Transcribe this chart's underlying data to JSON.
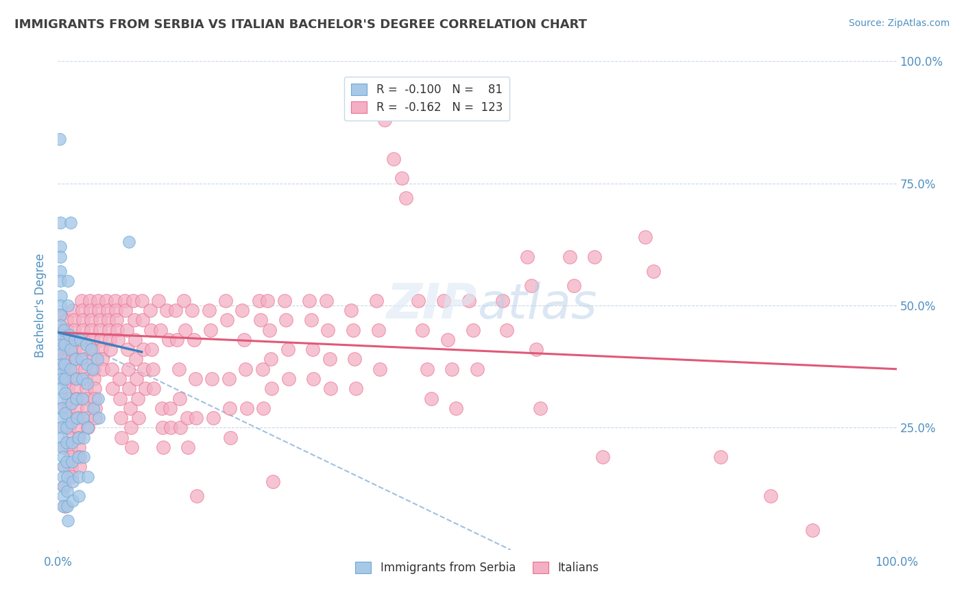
{
  "title": "IMMIGRANTS FROM SERBIA VS ITALIAN BACHELOR'S DEGREE CORRELATION CHART",
  "source_text": "Source: ZipAtlas.com",
  "ylabel": "Bachelor's Degree",
  "legend_label_1": "Immigrants from Serbia",
  "legend_label_2": "Italians",
  "xlim": [
    0.0,
    1.0
  ],
  "ylim": [
    0.0,
    1.0
  ],
  "x_left_label": "0.0%",
  "x_right_label": "100.0%",
  "ytick_positions": [
    0.25,
    0.5,
    0.75,
    1.0
  ],
  "yticklabels": [
    "25.0%",
    "50.0%",
    "75.0%",
    "100.0%"
  ],
  "blue_color": "#a8c8e8",
  "pink_color": "#f4afc4",
  "blue_edge_color": "#6aaad4",
  "pink_edge_color": "#e87090",
  "blue_line_color": "#3a80c0",
  "pink_line_color": "#e05878",
  "dashed_line_color": "#a0c0e0",
  "watermark_color": "#dce8f0",
  "background_color": "#ffffff",
  "grid_color": "#c8d8e8",
  "axis_label_color": "#5090c0",
  "title_color": "#404040",
  "blue_scatter": [
    [
      0.002,
      0.84
    ],
    [
      0.003,
      0.67
    ],
    [
      0.015,
      0.67
    ],
    [
      0.003,
      0.62
    ],
    [
      0.003,
      0.6
    ],
    [
      0.003,
      0.57
    ],
    [
      0.003,
      0.55
    ],
    [
      0.004,
      0.52
    ],
    [
      0.003,
      0.5
    ],
    [
      0.003,
      0.48
    ],
    [
      0.003,
      0.46
    ],
    [
      0.004,
      0.44
    ],
    [
      0.003,
      0.42
    ],
    [
      0.004,
      0.4
    ],
    [
      0.004,
      0.38
    ],
    [
      0.004,
      0.36
    ],
    [
      0.005,
      0.35
    ],
    [
      0.005,
      0.33
    ],
    [
      0.005,
      0.31
    ],
    [
      0.005,
      0.29
    ],
    [
      0.005,
      0.27
    ],
    [
      0.005,
      0.25
    ],
    [
      0.005,
      0.23
    ],
    [
      0.005,
      0.21
    ],
    [
      0.006,
      0.19
    ],
    [
      0.006,
      0.17
    ],
    [
      0.006,
      0.15
    ],
    [
      0.006,
      0.13
    ],
    [
      0.006,
      0.11
    ],
    [
      0.006,
      0.09
    ],
    [
      0.007,
      0.45
    ],
    [
      0.008,
      0.42
    ],
    [
      0.008,
      0.38
    ],
    [
      0.009,
      0.35
    ],
    [
      0.009,
      0.32
    ],
    [
      0.009,
      0.28
    ],
    [
      0.01,
      0.25
    ],
    [
      0.01,
      0.22
    ],
    [
      0.01,
      0.18
    ],
    [
      0.011,
      0.15
    ],
    [
      0.011,
      0.12
    ],
    [
      0.011,
      0.09
    ],
    [
      0.012,
      0.06
    ],
    [
      0.012,
      0.5
    ],
    [
      0.012,
      0.55
    ],
    [
      0.014,
      0.44
    ],
    [
      0.015,
      0.41
    ],
    [
      0.015,
      0.37
    ],
    [
      0.016,
      0.3
    ],
    [
      0.016,
      0.26
    ],
    [
      0.017,
      0.22
    ],
    [
      0.017,
      0.18
    ],
    [
      0.018,
      0.14
    ],
    [
      0.018,
      0.1
    ],
    [
      0.02,
      0.43
    ],
    [
      0.021,
      0.39
    ],
    [
      0.022,
      0.35
    ],
    [
      0.022,
      0.31
    ],
    [
      0.023,
      0.27
    ],
    [
      0.024,
      0.23
    ],
    [
      0.024,
      0.19
    ],
    [
      0.025,
      0.15
    ],
    [
      0.025,
      0.11
    ],
    [
      0.027,
      0.43
    ],
    [
      0.028,
      0.39
    ],
    [
      0.029,
      0.35
    ],
    [
      0.029,
      0.31
    ],
    [
      0.03,
      0.27
    ],
    [
      0.031,
      0.23
    ],
    [
      0.031,
      0.19
    ],
    [
      0.034,
      0.42
    ],
    [
      0.035,
      0.38
    ],
    [
      0.035,
      0.34
    ],
    [
      0.036,
      0.25
    ],
    [
      0.036,
      0.15
    ],
    [
      0.04,
      0.41
    ],
    [
      0.041,
      0.37
    ],
    [
      0.042,
      0.29
    ],
    [
      0.047,
      0.39
    ],
    [
      0.048,
      0.31
    ],
    [
      0.049,
      0.27
    ],
    [
      0.085,
      0.63
    ]
  ],
  "pink_scatter": [
    [
      0.003,
      0.48
    ],
    [
      0.003,
      0.45
    ],
    [
      0.004,
      0.43
    ],
    [
      0.004,
      0.41
    ],
    [
      0.005,
      0.39
    ],
    [
      0.005,
      0.37
    ],
    [
      0.006,
      0.35
    ],
    [
      0.006,
      0.29
    ],
    [
      0.007,
      0.25
    ],
    [
      0.007,
      0.21
    ],
    [
      0.008,
      0.17
    ],
    [
      0.008,
      0.13
    ],
    [
      0.009,
      0.09
    ],
    [
      0.01,
      0.47
    ],
    [
      0.01,
      0.45
    ],
    [
      0.01,
      0.43
    ],
    [
      0.011,
      0.41
    ],
    [
      0.011,
      0.39
    ],
    [
      0.011,
      0.37
    ],
    [
      0.012,
      0.35
    ],
    [
      0.012,
      0.33
    ],
    [
      0.013,
      0.31
    ],
    [
      0.013,
      0.29
    ],
    [
      0.013,
      0.27
    ],
    [
      0.014,
      0.25
    ],
    [
      0.014,
      0.23
    ],
    [
      0.015,
      0.21
    ],
    [
      0.015,
      0.19
    ],
    [
      0.016,
      0.17
    ],
    [
      0.016,
      0.15
    ],
    [
      0.018,
      0.49
    ],
    [
      0.019,
      0.47
    ],
    [
      0.019,
      0.45
    ],
    [
      0.02,
      0.43
    ],
    [
      0.02,
      0.41
    ],
    [
      0.021,
      0.39
    ],
    [
      0.021,
      0.37
    ],
    [
      0.022,
      0.35
    ],
    [
      0.022,
      0.33
    ],
    [
      0.023,
      0.31
    ],
    [
      0.023,
      0.29
    ],
    [
      0.024,
      0.27
    ],
    [
      0.024,
      0.25
    ],
    [
      0.025,
      0.23
    ],
    [
      0.025,
      0.21
    ],
    [
      0.026,
      0.19
    ],
    [
      0.026,
      0.17
    ],
    [
      0.028,
      0.51
    ],
    [
      0.029,
      0.49
    ],
    [
      0.03,
      0.47
    ],
    [
      0.03,
      0.45
    ],
    [
      0.031,
      0.43
    ],
    [
      0.031,
      0.41
    ],
    [
      0.032,
      0.39
    ],
    [
      0.032,
      0.37
    ],
    [
      0.033,
      0.35
    ],
    [
      0.034,
      0.33
    ],
    [
      0.034,
      0.31
    ],
    [
      0.035,
      0.29
    ],
    [
      0.035,
      0.27
    ],
    [
      0.036,
      0.25
    ],
    [
      0.038,
      0.51
    ],
    [
      0.039,
      0.49
    ],
    [
      0.04,
      0.47
    ],
    [
      0.04,
      0.45
    ],
    [
      0.041,
      0.43
    ],
    [
      0.041,
      0.41
    ],
    [
      0.042,
      0.39
    ],
    [
      0.043,
      0.37
    ],
    [
      0.043,
      0.35
    ],
    [
      0.044,
      0.33
    ],
    [
      0.044,
      0.31
    ],
    [
      0.045,
      0.29
    ],
    [
      0.045,
      0.27
    ],
    [
      0.048,
      0.51
    ],
    [
      0.049,
      0.49
    ],
    [
      0.05,
      0.47
    ],
    [
      0.05,
      0.45
    ],
    [
      0.051,
      0.43
    ],
    [
      0.052,
      0.41
    ],
    [
      0.053,
      0.39
    ],
    [
      0.054,
      0.37
    ],
    [
      0.058,
      0.51
    ],
    [
      0.059,
      0.49
    ],
    [
      0.06,
      0.47
    ],
    [
      0.061,
      0.45
    ],
    [
      0.062,
      0.43
    ],
    [
      0.063,
      0.41
    ],
    [
      0.064,
      0.37
    ],
    [
      0.065,
      0.33
    ],
    [
      0.068,
      0.51
    ],
    [
      0.069,
      0.49
    ],
    [
      0.07,
      0.47
    ],
    [
      0.071,
      0.45
    ],
    [
      0.072,
      0.43
    ],
    [
      0.073,
      0.35
    ],
    [
      0.074,
      0.31
    ],
    [
      0.075,
      0.27
    ],
    [
      0.076,
      0.23
    ],
    [
      0.08,
      0.51
    ],
    [
      0.081,
      0.49
    ],
    [
      0.082,
      0.45
    ],
    [
      0.083,
      0.41
    ],
    [
      0.084,
      0.37
    ],
    [
      0.085,
      0.33
    ],
    [
      0.086,
      0.29
    ],
    [
      0.087,
      0.25
    ],
    [
      0.088,
      0.21
    ],
    [
      0.09,
      0.51
    ],
    [
      0.091,
      0.47
    ],
    [
      0.092,
      0.43
    ],
    [
      0.093,
      0.39
    ],
    [
      0.094,
      0.35
    ],
    [
      0.095,
      0.31
    ],
    [
      0.096,
      0.27
    ],
    [
      0.1,
      0.51
    ],
    [
      0.101,
      0.47
    ],
    [
      0.102,
      0.41
    ],
    [
      0.103,
      0.37
    ],
    [
      0.104,
      0.33
    ],
    [
      0.11,
      0.49
    ],
    [
      0.111,
      0.45
    ],
    [
      0.112,
      0.41
    ],
    [
      0.113,
      0.37
    ],
    [
      0.114,
      0.33
    ],
    [
      0.12,
      0.51
    ],
    [
      0.122,
      0.45
    ],
    [
      0.124,
      0.29
    ],
    [
      0.125,
      0.25
    ],
    [
      0.126,
      0.21
    ],
    [
      0.13,
      0.49
    ],
    [
      0.132,
      0.43
    ],
    [
      0.134,
      0.29
    ],
    [
      0.135,
      0.25
    ],
    [
      0.14,
      0.49
    ],
    [
      0.142,
      0.43
    ],
    [
      0.144,
      0.37
    ],
    [
      0.145,
      0.31
    ],
    [
      0.146,
      0.25
    ],
    [
      0.15,
      0.51
    ],
    [
      0.152,
      0.45
    ],
    [
      0.154,
      0.27
    ],
    [
      0.155,
      0.21
    ],
    [
      0.16,
      0.49
    ],
    [
      0.162,
      0.43
    ],
    [
      0.164,
      0.35
    ],
    [
      0.165,
      0.27
    ],
    [
      0.166,
      0.11
    ],
    [
      0.18,
      0.49
    ],
    [
      0.182,
      0.45
    ],
    [
      0.184,
      0.35
    ],
    [
      0.185,
      0.27
    ],
    [
      0.2,
      0.51
    ],
    [
      0.202,
      0.47
    ],
    [
      0.204,
      0.35
    ],
    [
      0.205,
      0.29
    ],
    [
      0.206,
      0.23
    ],
    [
      0.22,
      0.49
    ],
    [
      0.222,
      0.43
    ],
    [
      0.224,
      0.37
    ],
    [
      0.225,
      0.29
    ],
    [
      0.24,
      0.51
    ],
    [
      0.242,
      0.47
    ],
    [
      0.244,
      0.37
    ],
    [
      0.245,
      0.29
    ],
    [
      0.25,
      0.51
    ],
    [
      0.252,
      0.45
    ],
    [
      0.254,
      0.39
    ],
    [
      0.255,
      0.33
    ],
    [
      0.256,
      0.14
    ],
    [
      0.27,
      0.51
    ],
    [
      0.272,
      0.47
    ],
    [
      0.274,
      0.41
    ],
    [
      0.275,
      0.35
    ],
    [
      0.3,
      0.51
    ],
    [
      0.302,
      0.47
    ],
    [
      0.304,
      0.41
    ],
    [
      0.305,
      0.35
    ],
    [
      0.32,
      0.51
    ],
    [
      0.322,
      0.45
    ],
    [
      0.324,
      0.39
    ],
    [
      0.325,
      0.33
    ],
    [
      0.35,
      0.49
    ],
    [
      0.352,
      0.45
    ],
    [
      0.354,
      0.39
    ],
    [
      0.355,
      0.33
    ],
    [
      0.38,
      0.51
    ],
    [
      0.382,
      0.45
    ],
    [
      0.384,
      0.37
    ],
    [
      0.39,
      0.88
    ],
    [
      0.4,
      0.8
    ],
    [
      0.41,
      0.76
    ],
    [
      0.415,
      0.72
    ],
    [
      0.43,
      0.51
    ],
    [
      0.435,
      0.45
    ],
    [
      0.44,
      0.37
    ],
    [
      0.445,
      0.31
    ],
    [
      0.46,
      0.51
    ],
    [
      0.465,
      0.43
    ],
    [
      0.47,
      0.37
    ],
    [
      0.475,
      0.29
    ],
    [
      0.49,
      0.51
    ],
    [
      0.495,
      0.45
    ],
    [
      0.5,
      0.37
    ],
    [
      0.53,
      0.51
    ],
    [
      0.535,
      0.45
    ],
    [
      0.56,
      0.6
    ],
    [
      0.565,
      0.54
    ],
    [
      0.57,
      0.41
    ],
    [
      0.575,
      0.29
    ],
    [
      0.61,
      0.6
    ],
    [
      0.615,
      0.54
    ],
    [
      0.64,
      0.6
    ],
    [
      0.65,
      0.19
    ],
    [
      0.7,
      0.64
    ],
    [
      0.71,
      0.57
    ],
    [
      0.79,
      0.19
    ],
    [
      0.85,
      0.11
    ],
    [
      0.9,
      0.04
    ]
  ],
  "blue_line": [
    [
      0.0,
      0.445
    ],
    [
      0.1,
      0.405
    ]
  ],
  "pink_line": [
    [
      0.0,
      0.445
    ],
    [
      1.0,
      0.37
    ]
  ],
  "dashed_line": [
    [
      0.0,
      0.445
    ],
    [
      0.54,
      0.0
    ]
  ]
}
